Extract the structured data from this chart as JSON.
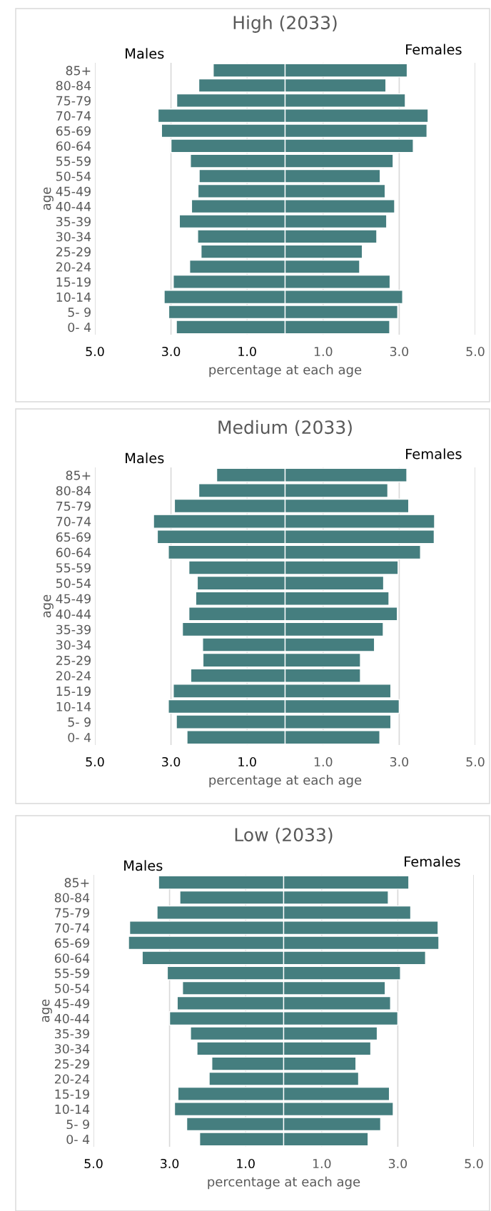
{
  "chart_data": [
    {
      "type": "bar",
      "orientation": "horizontal",
      "stacked": true,
      "title": "High (2033)",
      "xlabel": "percentage at each age",
      "ylabel": "age",
      "grid": "x",
      "categories": [
        "85+",
        "80-84",
        "75-79",
        "70-74",
        "65-69",
        "60-64",
        "55-59",
        "50-54",
        "45-49",
        "40-44",
        "35-39",
        "30-34",
        "25-29",
        "20-24",
        "15-19",
        "10-14",
        "5- 9",
        "0- 4"
      ],
      "series": [
        {
          "name": "Males",
          "color": "#457e7f",
          "values": [
            -1.89,
            -2.27,
            -2.85,
            -3.34,
            -3.25,
            -3.0,
            -2.49,
            -2.26,
            -2.29,
            -2.46,
            -2.78,
            -2.3,
            -2.21,
            -2.51,
            -2.94,
            -3.18,
            -3.06,
            -2.86
          ]
        },
        {
          "name": "Females",
          "color": "#457e7f",
          "values": [
            3.21,
            2.65,
            3.16,
            3.76,
            3.73,
            3.37,
            2.84,
            2.5,
            2.63,
            2.88,
            2.67,
            2.41,
            2.03,
            1.96,
            2.76,
            3.09,
            2.96,
            2.75
          ]
        }
      ],
      "xlim": [
        -5,
        5
      ],
      "xticks": [
        {
          "value": -5,
          "label": "5.0"
        },
        {
          "value": -3,
          "label": "3.0"
        },
        {
          "value": -1,
          "label": "1.0"
        },
        {
          "value": 1,
          "label": "1.0"
        },
        {
          "value": 3,
          "label": "3.0"
        },
        {
          "value": 5,
          "label": "5.0"
        }
      ]
    },
    {
      "type": "bar",
      "orientation": "horizontal",
      "stacked": true,
      "title": "Medium (2033)",
      "xlabel": "percentage at each age",
      "ylabel": "age",
      "grid": "x",
      "categories": [
        "85+",
        "80-84",
        "75-79",
        "70-74",
        "65-69",
        "60-64",
        "55-59",
        "50-54",
        "45-49",
        "40-44",
        "35-39",
        "30-34",
        "25-29",
        "20-24",
        "15-19",
        "10-14",
        "5- 9",
        "0- 4"
      ],
      "series": [
        {
          "name": "Males",
          "color": "#457e7f",
          "values": [
            -1.8,
            -2.27,
            -2.91,
            -3.46,
            -3.36,
            -3.07,
            -2.53,
            -2.31,
            -2.35,
            -2.53,
            -2.7,
            -2.17,
            -2.16,
            -2.48,
            -2.94,
            -3.07,
            -2.86,
            -2.58
          ]
        },
        {
          "name": "Females",
          "color": "#457e7f",
          "values": [
            3.2,
            2.7,
            3.25,
            3.93,
            3.92,
            3.56,
            2.97,
            2.59,
            2.73,
            2.95,
            2.58,
            2.35,
            1.98,
            1.98,
            2.78,
            3.0,
            2.78,
            2.49
          ]
        }
      ],
      "xlim": [
        -5,
        5
      ],
      "xticks": [
        {
          "value": -5,
          "label": "5.0"
        },
        {
          "value": -3,
          "label": "3.0"
        },
        {
          "value": -1,
          "label": "1.0"
        },
        {
          "value": 1,
          "label": "1.0"
        },
        {
          "value": 3,
          "label": "3.0"
        },
        {
          "value": 5,
          "label": "5.0"
        }
      ]
    },
    {
      "type": "bar",
      "orientation": "horizontal",
      "stacked": true,
      "title": "Low (2033)",
      "xlabel": "percentage at each age",
      "ylabel": "age",
      "grid": "x",
      "categories": [
        "85+",
        "80-84",
        "75-79",
        "70-74",
        "65-69",
        "60-64",
        "55-59",
        "50-54",
        "45-49",
        "40-44",
        "35-39",
        "30-34",
        "25-29",
        "20-24",
        "15-19",
        "10-14",
        "5- 9",
        "0- 4"
      ],
      "series": [
        {
          "name": "Males",
          "color": "#457e7f",
          "values": [
            -3.29,
            -2.73,
            -3.33,
            -4.05,
            -4.08,
            -3.72,
            -3.06,
            -2.66,
            -2.8,
            -3.0,
            -2.45,
            -2.28,
            -1.89,
            -1.96,
            -2.78,
            -2.87,
            -2.55,
            -2.21
          ]
        },
        {
          "name": "Females",
          "color": "#457e7f",
          "values": [
            3.29,
            2.75,
            3.34,
            4.06,
            4.08,
            3.73,
            3.07,
            2.67,
            2.81,
            3.0,
            2.46,
            2.29,
            1.9,
            1.97,
            2.78,
            2.88,
            2.55,
            2.22
          ]
        }
      ],
      "xlim": [
        -5,
        5
      ],
      "xticks": [
        {
          "value": -5,
          "label": "5.0"
        },
        {
          "value": -3,
          "label": "3.0"
        },
        {
          "value": -1,
          "label": "1.0"
        },
        {
          "value": 1,
          "label": "1.0"
        },
        {
          "value": 3,
          "label": "3.0"
        },
        {
          "value": 5,
          "label": "5.0"
        }
      ]
    }
  ]
}
